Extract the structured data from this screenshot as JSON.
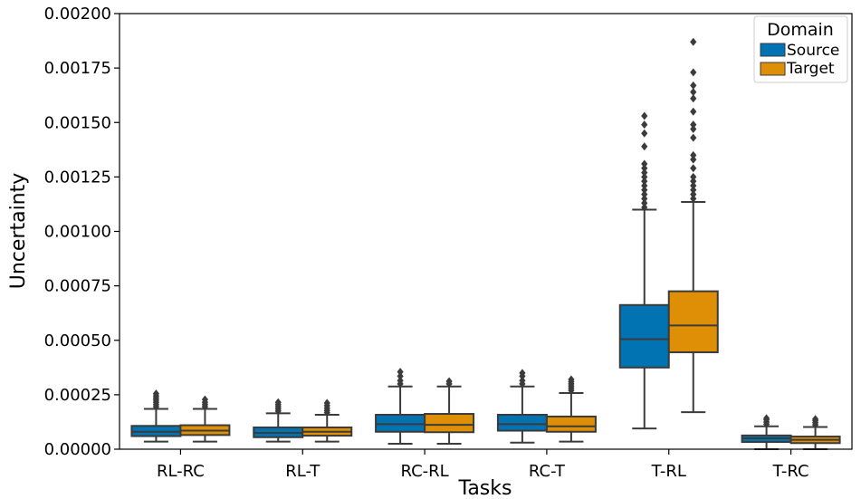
{
  "chart_data": {
    "type": "box",
    "xlabel": "Tasks",
    "ylabel": "Uncertainty",
    "ylim": [
      0,
      0.002
    ],
    "yticks": [
      "0.00000",
      "0.00025",
      "0.00050",
      "0.00075",
      "0.00100",
      "0.00125",
      "0.00150",
      "0.00175",
      "0.00200"
    ],
    "yticks_values": [
      0,
      0.00025,
      0.0005,
      0.00075,
      0.001,
      0.00125,
      0.0015,
      0.00175,
      0.002
    ],
    "categories": [
      "RL-RC",
      "RL-T",
      "RC-RL",
      "RC-T",
      "T-RL",
      "T-RC"
    ],
    "legend": {
      "title": "Domain",
      "position": "top-right"
    },
    "grid": false,
    "series": [
      {
        "name": "Source",
        "color": "#0173b2",
        "boxes": [
          {
            "whislo": 3.5e-05,
            "q1": 6e-05,
            "med": 8e-05,
            "q3": 0.000107,
            "whishi": 0.000185,
            "fliers": [
              0.000195,
              0.000205,
              0.000215,
              0.000225,
              0.000235,
              0.000245,
              0.000255
            ]
          },
          {
            "whislo": 3.5e-05,
            "q1": 5.5e-05,
            "med": 7.5e-05,
            "q3": 0.0001,
            "whishi": 0.000165,
            "fliers": [
              0.000175,
              0.000185,
              0.000195,
              0.000205,
              0.000215
            ]
          },
          {
            "whislo": 2.5e-05,
            "q1": 8e-05,
            "med": 0.000115,
            "q3": 0.000158,
            "whishi": 0.000288,
            "fliers": [
              0.0003,
              0.000315,
              0.000335,
              0.000355
            ]
          },
          {
            "whislo": 3e-05,
            "q1": 8.5e-05,
            "med": 0.000115,
            "q3": 0.000158,
            "whishi": 0.000288,
            "fliers": [
              0.0003,
              0.000315,
              0.000335,
              0.00035
            ]
          },
          {
            "whislo": 9.5e-05,
            "q1": 0.000375,
            "med": 0.000505,
            "q3": 0.000662,
            "whishi": 0.0011,
            "fliers": [
              0.00111,
              0.00113,
              0.00115,
              0.00117,
              0.00119,
              0.00121,
              0.00123,
              0.00125,
              0.00127,
              0.00129,
              0.00131,
              0.00139,
              0.00145,
              0.00149,
              0.00153
            ]
          },
          {
            "whislo": 0.0,
            "q1": 3.3e-05,
            "med": 5e-05,
            "q3": 6.3e-05,
            "whishi": 0.000105,
            "fliers": [
              0.000115,
              0.000125,
              0.000135,
              0.000142
            ]
          }
        ]
      },
      {
        "name": "Target",
        "color": "#de8f05",
        "boxes": [
          {
            "whislo": 3.5e-05,
            "q1": 6.5e-05,
            "med": 8.5e-05,
            "q3": 0.00011,
            "whishi": 0.000185,
            "fliers": [
              0.000195,
              0.000205,
              0.000215,
              0.000228
            ]
          },
          {
            "whislo": 3.5e-05,
            "q1": 6.2e-05,
            "med": 8e-05,
            "q3": 0.0001,
            "whishi": 0.000158,
            "fliers": [
              0.000168,
              0.000178,
              0.000188,
              0.0002,
              0.000212
            ]
          },
          {
            "whislo": 2.5e-05,
            "q1": 7.8e-05,
            "med": 0.000112,
            "q3": 0.000162,
            "whishi": 0.000288,
            "fliers": [
              0.0003,
              0.000312
            ]
          },
          {
            "whislo": 3.5e-05,
            "q1": 8e-05,
            "med": 0.000105,
            "q3": 0.00015,
            "whishi": 0.000258,
            "fliers": [
              0.00027,
              0.00028,
              0.00029,
              0.0003,
              0.00031,
              0.00032
            ]
          },
          {
            "whislo": 0.00017,
            "q1": 0.000445,
            "med": 0.000568,
            "q3": 0.000725,
            "whishi": 0.001135,
            "fliers": [
              0.00115,
              0.00117,
              0.00119,
              0.00121,
              0.00123,
              0.00125,
              0.00129,
              0.00133,
              0.00135,
              0.00143,
              0.00147,
              0.00149,
              0.00155,
              0.00161,
              0.00164,
              0.00167,
              0.00173,
              0.00187
            ]
          },
          {
            "whislo": 0.0,
            "q1": 2.8e-05,
            "med": 4.3e-05,
            "q3": 5.8e-05,
            "whishi": 0.000102,
            "fliers": [
              0.000112,
              0.000122,
              0.000132,
              0.000138
            ]
          }
        ]
      }
    ]
  }
}
